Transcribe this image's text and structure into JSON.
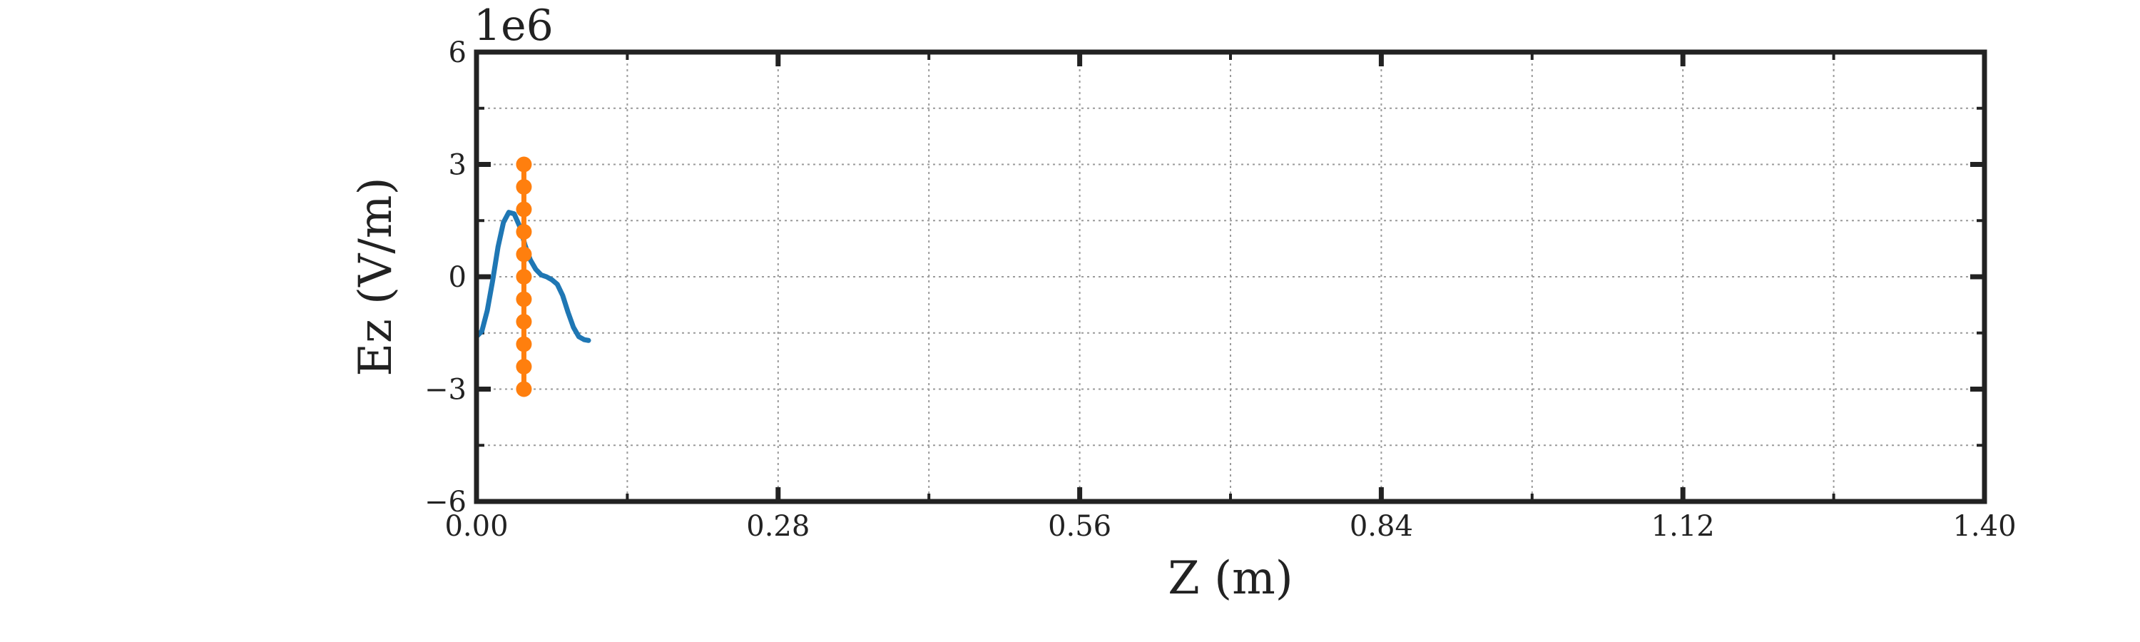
{
  "chart_data": {
    "type": "line",
    "title": "",
    "xlabel": "Z (m)",
    "ylabel": "Ez (V/m)",
    "y_offset_label": "1e6",
    "xlim": [
      0.0,
      1.4
    ],
    "ylim": [
      -6,
      6
    ],
    "y_scale": 1000000,
    "x_ticks": [
      0.0,
      0.28,
      0.56,
      0.84,
      1.12,
      1.4
    ],
    "x_tick_labels": [
      "0.00",
      "0.28",
      "0.56",
      "0.84",
      "1.12",
      "1.40"
    ],
    "x_minor_ticks": [
      0.14,
      0.42,
      0.7,
      0.98,
      1.26
    ],
    "y_ticks": [
      -6,
      -3,
      0,
      3,
      6
    ],
    "y_tick_labels": [
      "−6",
      "−3",
      "0",
      "3",
      "6"
    ],
    "y_minor_ticks": [
      -4.5,
      -1.5,
      1.5,
      4.5
    ],
    "grid": true,
    "legend": "none",
    "colors": {
      "field_profile": "#1f77b4",
      "marker_line": "#ff7f0e",
      "axes": "#222222"
    },
    "series": [
      {
        "style": "line",
        "color": "#1f77b4",
        "x": [
          0.0,
          0.005,
          0.01,
          0.015,
          0.02,
          0.025,
          0.03,
          0.035,
          0.04,
          0.045,
          0.05,
          0.055,
          0.06,
          0.065,
          0.07,
          0.075,
          0.08,
          0.085,
          0.09,
          0.095,
          0.1,
          0.104
        ],
        "y": [
          -1.6,
          -1.45,
          -0.9,
          -0.1,
          0.8,
          1.45,
          1.72,
          1.68,
          1.35,
          0.85,
          0.45,
          0.2,
          0.05,
          0.0,
          -0.08,
          -0.2,
          -0.5,
          -0.95,
          -1.35,
          -1.6,
          -1.68,
          -1.7
        ]
      },
      {
        "style": "line+markers",
        "color": "#ff7f0e",
        "x": [
          0.044,
          0.044,
          0.044,
          0.044,
          0.044,
          0.044,
          0.044,
          0.044,
          0.044,
          0.044,
          0.044
        ],
        "y": [
          -3.0,
          -2.4,
          -1.8,
          -1.2,
          -0.6,
          0.0,
          0.6,
          1.2,
          1.8,
          2.4,
          3.0
        ]
      }
    ]
  }
}
